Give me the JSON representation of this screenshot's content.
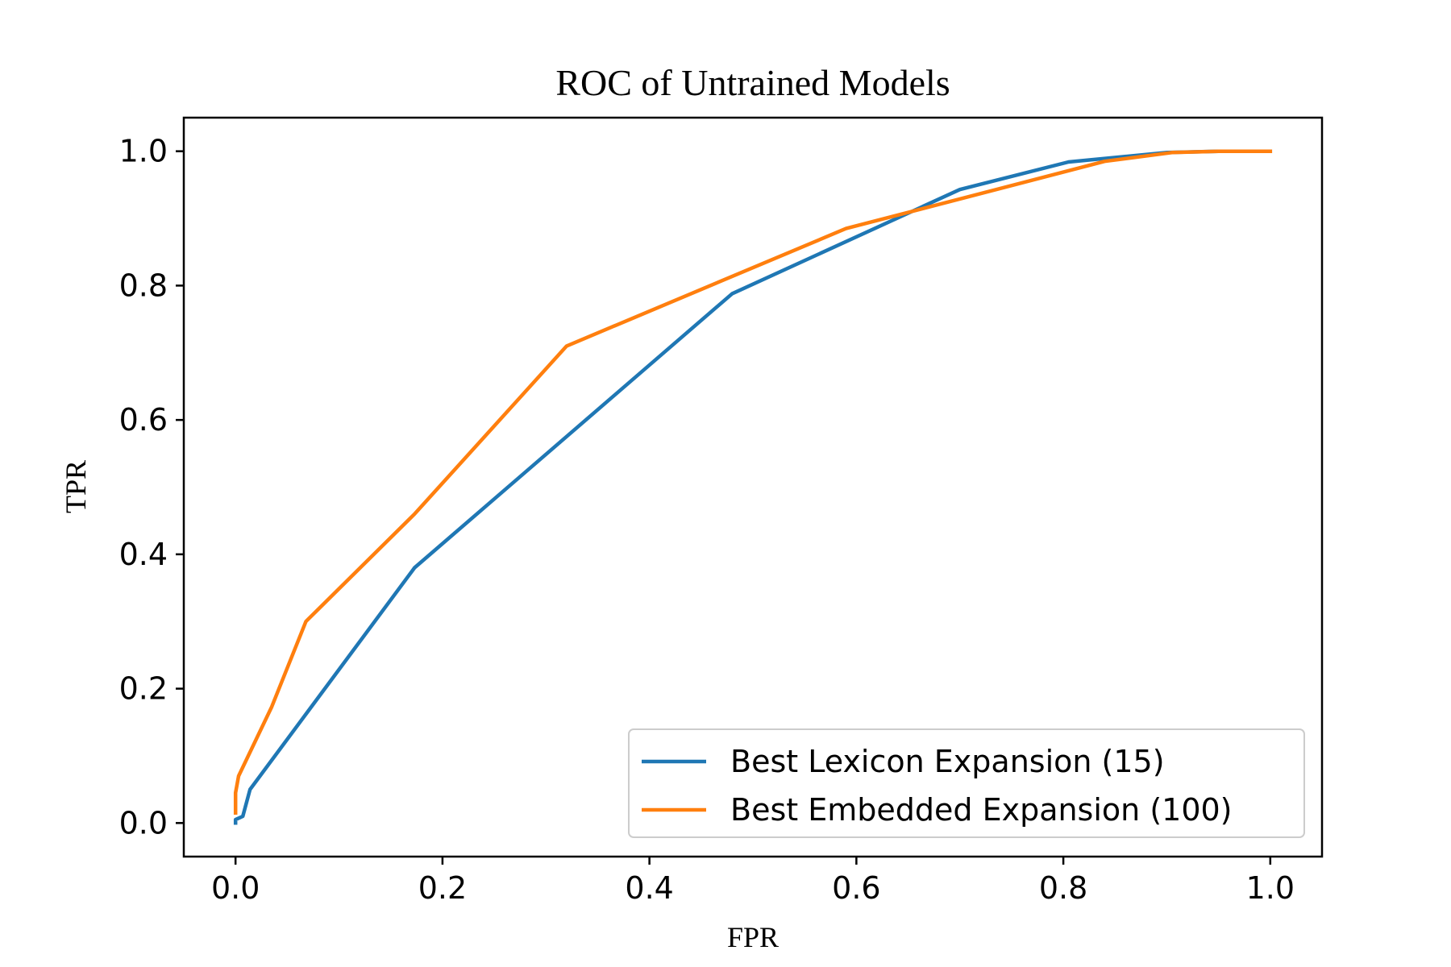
{
  "chart_data": {
    "type": "line",
    "title": "ROC of Untrained Models",
    "xlabel": "FPR",
    "ylabel": "TPR",
    "xlim": [
      -0.05,
      1.05
    ],
    "ylim": [
      -0.05,
      1.05
    ],
    "xticks": [
      0.0,
      0.2,
      0.4,
      0.6,
      0.8,
      1.0
    ],
    "xtick_labels": [
      "0.0",
      "0.2",
      "0.4",
      "0.6",
      "0.8",
      "1.0"
    ],
    "yticks": [
      0.0,
      0.2,
      0.4,
      0.6,
      0.8,
      1.0
    ],
    "ytick_labels": [
      "0.0",
      "0.2",
      "0.4",
      "0.6",
      "0.8",
      "1.0"
    ],
    "grid": false,
    "legend_position": "lower-right",
    "series": [
      {
        "name": "Best Lexicon Expansion (15)",
        "color": "#1f77b4",
        "x": [
          0.0,
          0.0,
          0.007,
          0.014,
          0.173,
          0.48,
          0.7,
          0.805,
          0.9,
          0.95,
          1.0
        ],
        "y": [
          0.0,
          0.005,
          0.01,
          0.05,
          0.38,
          0.788,
          0.943,
          0.984,
          0.998,
          1.0,
          1.0
        ]
      },
      {
        "name": "Best Embedded Expansion (100)",
        "color": "#ff7f0e",
        "x": [
          0.0,
          0.0,
          0.003,
          0.035,
          0.068,
          0.173,
          0.32,
          0.59,
          0.84,
          0.905,
          0.95,
          1.0
        ],
        "y": [
          0.015,
          0.045,
          0.07,
          0.173,
          0.3,
          0.46,
          0.71,
          0.885,
          0.985,
          0.998,
          1.0,
          1.0
        ]
      }
    ]
  }
}
